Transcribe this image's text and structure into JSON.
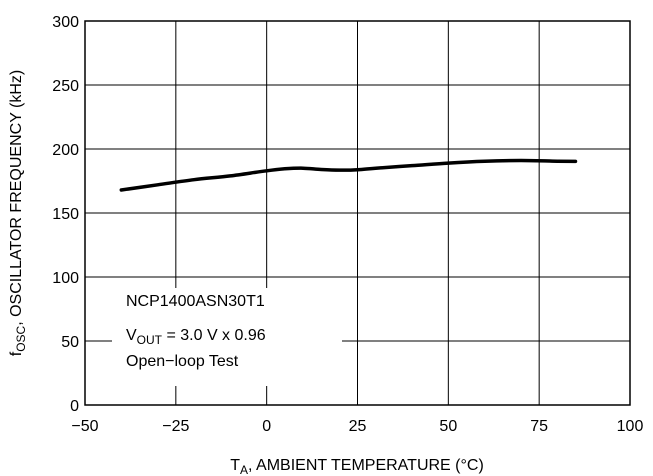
{
  "chart_data": {
    "type": "line",
    "xlabel_main": "T",
    "xlabel_sub": "A",
    "xlabel_rest": ", AMBIENT TEMPERATURE (°C)",
    "ylabel_main": "f",
    "ylabel_sub": "OSC",
    "ylabel_rest": ", OSCILLATOR FREQUENCY (kHz)",
    "xlim": [
      -50,
      100
    ],
    "ylim": [
      0,
      300
    ],
    "x_ticks": [
      -50,
      -25,
      0,
      25,
      50,
      75,
      100
    ],
    "x_tick_labels": [
      "−50",
      "−25",
      "0",
      "25",
      "50",
      "75",
      "100"
    ],
    "y_ticks": [
      0,
      50,
      100,
      150,
      200,
      250,
      300
    ],
    "y_tick_labels": [
      "0",
      "50",
      "100",
      "150",
      "200",
      "250",
      "300"
    ],
    "grid": true,
    "series": [
      {
        "x": [
          -40,
          -30,
          -20,
          -10,
          0,
          5,
          10,
          15,
          20,
          25,
          30,
          40,
          50,
          60,
          70,
          80,
          85
        ],
        "y": [
          168,
          172,
          176,
          179,
          183,
          184.5,
          185,
          184,
          183.5,
          183.8,
          185,
          187,
          189,
          190.5,
          191,
          190.5,
          190.3
        ]
      }
    ],
    "annotation": {
      "line1": "NCP1400ASN30T1",
      "line2_main": "V",
      "line2_sub": "OUT",
      "line2_rest": " = 3.0 V x 0.96",
      "line3": "Open−loop Test"
    }
  }
}
